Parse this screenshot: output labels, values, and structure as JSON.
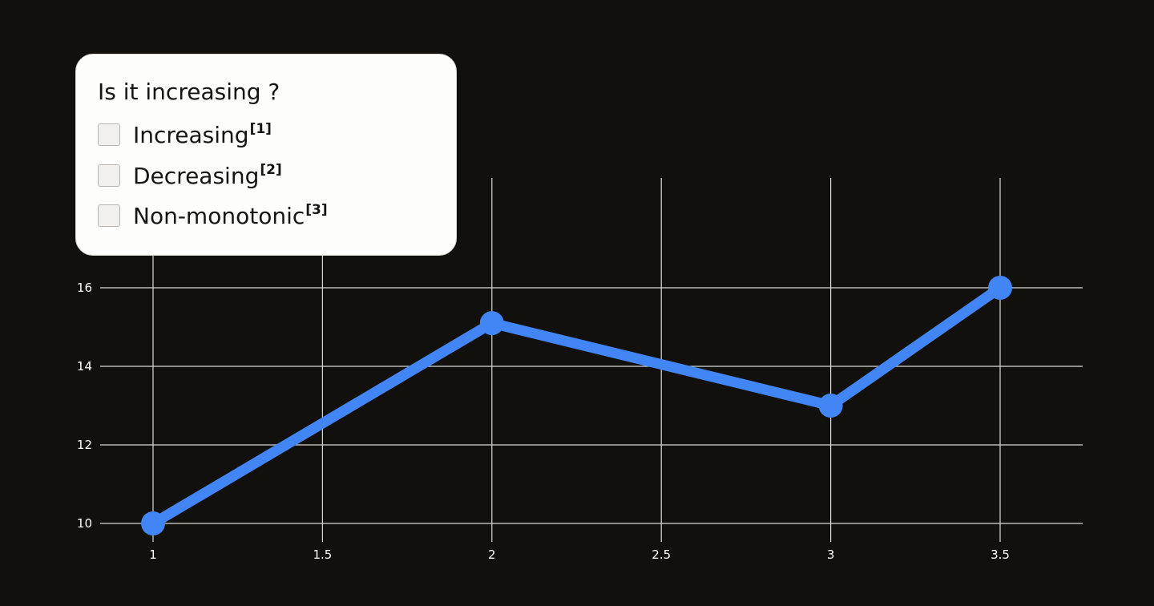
{
  "chart_data": {
    "type": "line",
    "x": [
      1,
      2,
      3,
      3.5
    ],
    "series": [
      {
        "values": [
          10,
          15.1,
          13,
          16
        ],
        "color": "#4285f4"
      }
    ],
    "xticks": [
      "1",
      "1.5",
      "2",
      "2.5",
      "3",
      "3.5"
    ],
    "yticks": [
      "10",
      "12",
      "14",
      "16"
    ],
    "xlim": [
      0.85,
      3.75
    ],
    "ylim": [
      10,
      16
    ],
    "grid": true,
    "xlabel": "",
    "ylabel": "",
    "title": ""
  },
  "quiz": {
    "question": "Is it increasing ?",
    "options": [
      {
        "label": "Increasing",
        "ref": "[1]",
        "checked": false
      },
      {
        "label": "Decreasing",
        "ref": "[2]",
        "checked": false
      },
      {
        "label": "Non-monotonic",
        "ref": "[3]",
        "checked": false
      }
    ]
  },
  "colors": {
    "background": "#12100d",
    "line": "#4285f4",
    "grid": "#d9d9d9",
    "card": "#fdfdfb"
  }
}
